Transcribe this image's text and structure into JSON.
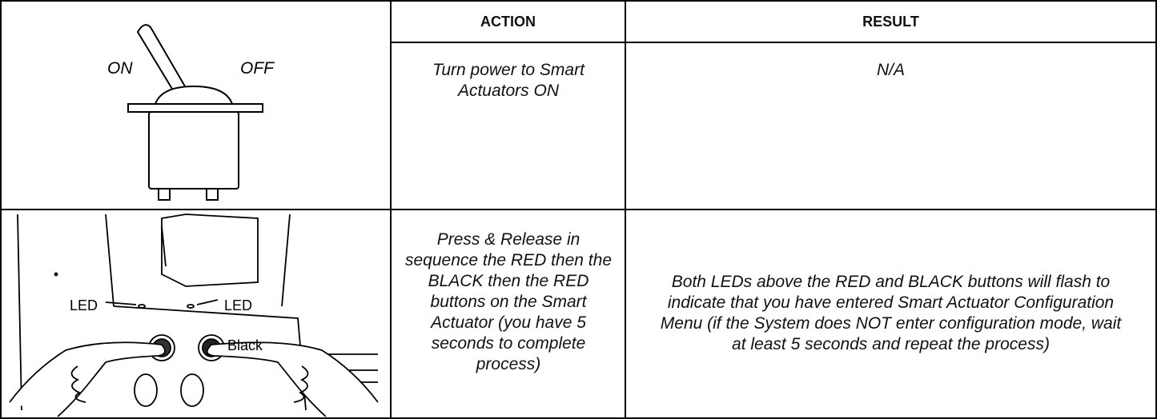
{
  "table": {
    "header": [
      "ACTION",
      "RESULT"
    ],
    "rows": [
      {
        "action": "Turn power to Smart Actuators ON",
        "result": "N/A"
      },
      {
        "action": "Press & Release in sequence  the RED then the BLACK then the RED buttons on the Smart Actuator (you have 5 seconds to complete process)",
        "result": "Both LEDs above the RED and BLACK buttons will flash to indicate that you have entered Smart Actuator Configuration Menu (if the System does NOT enter configuration mode, wait at least 5 seconds and repeat the process)"
      }
    ]
  },
  "figures": {
    "switch": {
      "on": "ON",
      "off": "OFF"
    },
    "panel": {
      "led_left": "LED",
      "led_right": "LED",
      "button": "Black"
    }
  }
}
